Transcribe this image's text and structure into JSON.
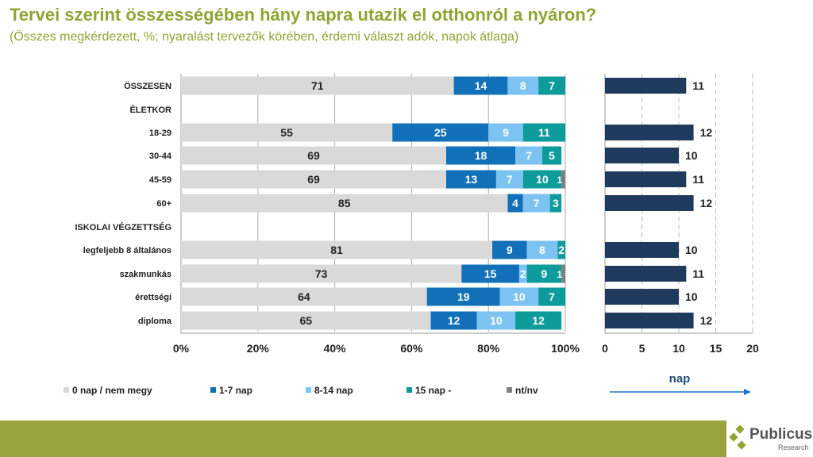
{
  "title": "Tervei szerint összességében hány napra utazik el otthonról a nyáron?",
  "subtitle": "(Összes megkérdezett, %; nyaralást tervezők körében, érdemi választ adók, napok átlaga)",
  "colors": {
    "0 nap / nem megy": "#d9d9d9",
    "1-7 nap": "#1170b8",
    "8-14 nap": "#7cc3f2",
    "15 nap -": "#0e9b9b",
    "nt/nv": "#808080",
    "avg": "#1f3a5c"
  },
  "chart_data": [
    {
      "type": "bar",
      "orientation": "horizontal",
      "stacked": true,
      "categories": [
        "ÖSSZESEN",
        "ÉLETKOR",
        "18-29",
        "30-44",
        "45-59",
        "60+",
        "ISKOLAI VÉGZETTSÉG",
        "legfeljebb 8 általános",
        "szakmunkás",
        "érettségi",
        "diploma"
      ],
      "series": [
        {
          "name": "0 nap / nem megy",
          "values": [
            71,
            null,
            55,
            69,
            69,
            85,
            null,
            81,
            73,
            64,
            65
          ]
        },
        {
          "name": "1-7 nap",
          "values": [
            14,
            null,
            25,
            18,
            13,
            4,
            null,
            9,
            15,
            19,
            12
          ]
        },
        {
          "name": "8-14 nap",
          "values": [
            8,
            null,
            9,
            7,
            7,
            7,
            null,
            8,
            2,
            10,
            10
          ]
        },
        {
          "name": "15 nap -",
          "values": [
            7,
            null,
            11,
            5,
            10,
            3,
            null,
            2,
            9,
            7,
            12
          ]
        },
        {
          "name": "nt/nv",
          "values": [
            0,
            null,
            0,
            0,
            1,
            0,
            null,
            0,
            1,
            0,
            0
          ]
        }
      ],
      "xlim": [
        0,
        100
      ],
      "xticks": [
        "0%",
        "20%",
        "40%",
        "60%",
        "80%",
        "100%"
      ],
      "legend": "bottom"
    },
    {
      "type": "bar",
      "orientation": "horizontal",
      "values": [
        11,
        null,
        12,
        10,
        11,
        12,
        null,
        10,
        11,
        10,
        12
      ],
      "xlim": [
        0,
        20
      ],
      "xticks": [
        "0",
        "5",
        "10",
        "15",
        "20"
      ],
      "xlabel": "nap",
      "grid": true
    }
  ],
  "logo": {
    "name": "Publicus",
    "sub": "Research"
  }
}
